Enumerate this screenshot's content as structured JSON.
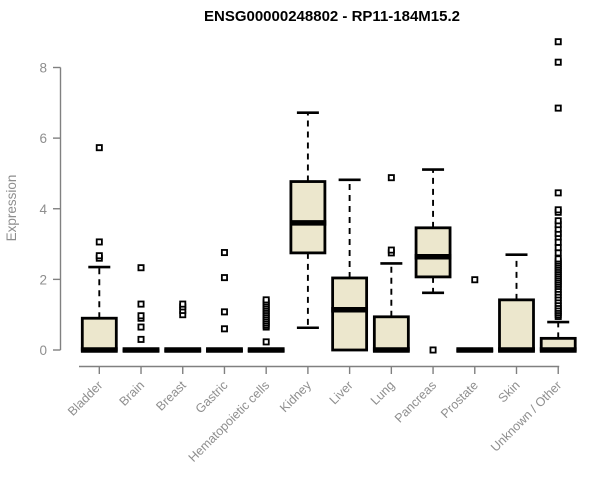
{
  "chart_data": {
    "type": "box",
    "title": "ENSG00000248802 - RP11-184M15.2",
    "ylabel": "Expression",
    "xlabel": "",
    "ylim": [
      0,
      8.8
    ],
    "yticks": [
      0,
      2,
      4,
      6,
      8
    ],
    "grid": false,
    "legend": false,
    "colors": {
      "box_fill": "#ece7cd",
      "box_border": "#000000",
      "axis": "#808080",
      "tick_label": "#8e8e8e",
      "title": "#000000"
    },
    "categories": [
      "Bladder",
      "Brain",
      "Breast",
      "Gastric",
      "Hematopoietic cells",
      "Kidney",
      "Liver",
      "Lung",
      "Pancreas",
      "Prostate",
      "Skin",
      "Unknown / Other"
    ],
    "series": [
      {
        "label": "Bladder",
        "q1": 0,
        "median": 0,
        "q3": 0.9,
        "whisker_low": 0,
        "whisker_high": 2.35,
        "outliers": [
          2.6,
          2.67,
          3.06,
          5.73
        ]
      },
      {
        "label": "Brain",
        "q1": 0,
        "median": 0,
        "q3": 0,
        "whisker_low": 0,
        "whisker_high": 0,
        "outliers": [
          0.3,
          0.65,
          0.9,
          0.97,
          1.3,
          2.33
        ]
      },
      {
        "label": "Breast",
        "q1": 0,
        "median": 0,
        "q3": 0,
        "whisker_low": 0,
        "whisker_high": 0,
        "outliers": [
          1.0,
          1.12,
          1.22,
          1.3
        ]
      },
      {
        "label": "Gastric",
        "q1": 0,
        "median": 0,
        "q3": 0,
        "whisker_low": 0,
        "whisker_high": 0,
        "outliers": [
          0.6,
          1.08,
          2.05,
          2.76
        ]
      },
      {
        "label": "Hematopoietic cells",
        "q1": 0,
        "median": 0,
        "q3": 0,
        "whisker_low": 0,
        "whisker_high": 0,
        "outliers": [
          0.23,
          0.65,
          0.7,
          0.76,
          0.82,
          0.88,
          0.94,
          1.0,
          1.06,
          1.12,
          1.18,
          1.24,
          1.3,
          1.36,
          1.42
        ]
      },
      {
        "label": "Kidney",
        "q1": 2.75,
        "median": 3.6,
        "q3": 4.77,
        "whisker_low": 0.63,
        "whisker_high": 6.72,
        "outliers": []
      },
      {
        "label": "Liver",
        "q1": 0,
        "median": 1.14,
        "q3": 2.04,
        "whisker_low": 0,
        "whisker_high": 4.82,
        "outliers": []
      },
      {
        "label": "Lung",
        "q1": 0,
        "median": 0,
        "q3": 0.94,
        "whisker_low": 0,
        "whisker_high": 2.45,
        "outliers": [
          2.75,
          2.83,
          4.88
        ]
      },
      {
        "label": "Pancreas",
        "q1": 2.07,
        "median": 2.64,
        "q3": 3.46,
        "whisker_low": 1.62,
        "whisker_high": 5.11,
        "outliers": [
          0
        ]
      },
      {
        "label": "Prostate",
        "q1": 0,
        "median": 0,
        "q3": 0,
        "whisker_low": 0,
        "whisker_high": 0,
        "outliers": [
          1.99
        ]
      },
      {
        "label": "Skin",
        "q1": 0,
        "median": 0,
        "q3": 1.42,
        "whisker_low": 0,
        "whisker_high": 2.7,
        "outliers": []
      },
      {
        "label": "Unknown / Other",
        "q1": 0,
        "median": 0,
        "q3": 0.33,
        "whisker_low": 0,
        "whisker_high": 0.79,
        "outliers": [
          0.95,
          1.0,
          1.06,
          1.12,
          1.18,
          1.25,
          1.32,
          1.4,
          1.48,
          1.56,
          1.64,
          1.72,
          1.8,
          1.86,
          1.92,
          1.98,
          2.04,
          2.1,
          2.16,
          2.22,
          2.28,
          2.34,
          2.4,
          2.46,
          2.52,
          2.58,
          2.75,
          2.9,
          3.05,
          3.2,
          3.3,
          3.42,
          3.55,
          3.66,
          3.9,
          3.97,
          4.45,
          6.85,
          8.15,
          8.73
        ]
      }
    ]
  }
}
